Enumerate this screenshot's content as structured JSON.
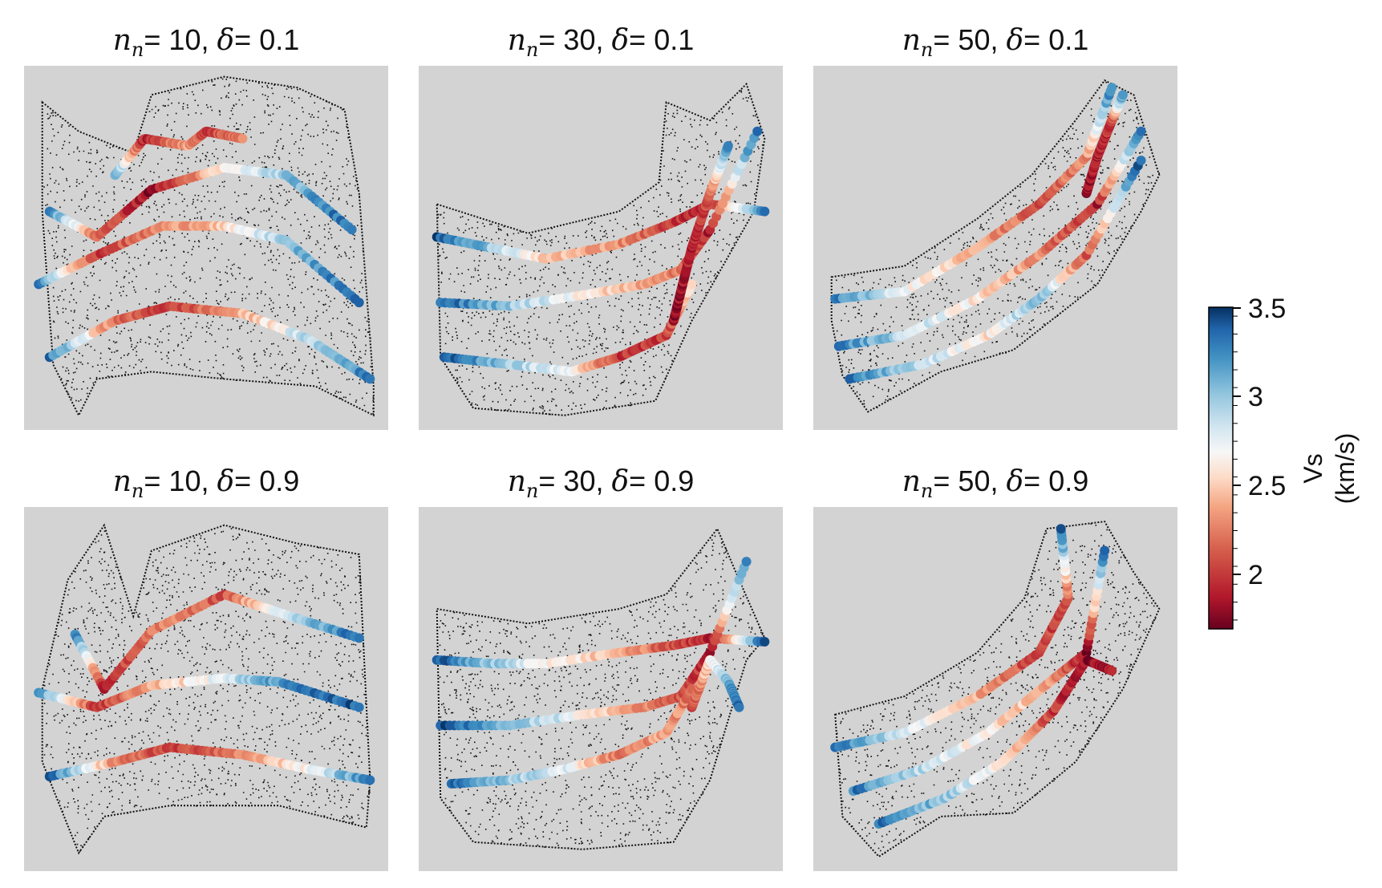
{
  "chart_data": {
    "type": "scatter",
    "layout": "2x3 grid",
    "panels": [
      {
        "n_n": "10",
        "delta": "0.1"
      },
      {
        "n_n": "30",
        "delta": "0.1"
      },
      {
        "n_n": "50",
        "delta": "0.1"
      },
      {
        "n_n": "10",
        "delta": "0.9"
      },
      {
        "n_n": "30",
        "delta": "0.9"
      },
      {
        "n_n": "50",
        "delta": "0.9"
      }
    ],
    "colorbar": {
      "label_line1": "Vs",
      "label_line2": "(km/s)",
      "range": [
        1.7,
        3.5
      ],
      "ticks": [
        "2",
        "2.5",
        "3",
        "3.5"
      ],
      "tick_values": [
        2,
        2.5,
        3,
        3.5
      ],
      "colormap": "RdBu",
      "placement": "right"
    },
    "panel_background": "#d3d3d3",
    "point_color": "#000000"
  }
}
